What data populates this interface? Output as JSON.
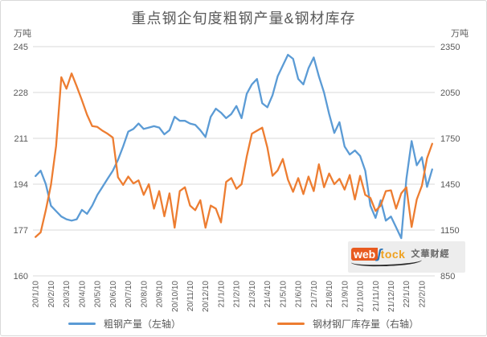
{
  "title": "重点钢企旬度粗钢产量&钢材库存",
  "colors": {
    "title": "#595959",
    "tick_label": "#595959",
    "grid": "#d9d9d9",
    "series_output": "#5b9bd5",
    "series_inventory": "#ed7d31"
  },
  "watermark": {
    "web": "web",
    "tock": "tock",
    "cn": "文華财經"
  },
  "legend": [
    {
      "label": "粗钢产量（左轴）",
      "color": "#5b9bd5"
    },
    {
      "label": "钢材钢厂库存量（右轴）",
      "color": "#ed7d31"
    }
  ],
  "chart_data": {
    "type": "line",
    "title": "重点钢企旬度粗钢产量&钢材库存",
    "grid": "horizontal",
    "legend_position": "bottom",
    "left_axis": {
      "label": "万吨",
      "min": 160,
      "max": 245,
      "ticks": [
        245,
        228,
        211,
        194,
        177,
        160
      ]
    },
    "right_axis": {
      "label": "万吨",
      "min": 850,
      "max": 2350,
      "ticks": [
        2350,
        2050,
        1750,
        1450,
        1150,
        850
      ]
    },
    "x_tick_labels": [
      "20/1/10",
      "20/2/10",
      "20/3/10",
      "20/4/10",
      "20/5/10",
      "20/6/10",
      "20/7/10",
      "20/8/10",
      "20/9/10",
      "20/10/10",
      "20/11/10",
      "20/12/10",
      "21/1/10",
      "21/2/10",
      "21/3/10",
      "21/4/10",
      "21/5/10",
      "21/6/10",
      "21/7/10",
      "21/8/10",
      "21/9/10",
      "21/10/10",
      "21/11/10",
      "21/12/10",
      "22/1/10",
      "22/2/10"
    ],
    "x": [
      "20/1/10",
      "20/1/20",
      "20/1/31",
      "20/2/10",
      "20/2/20",
      "20/2/29",
      "20/3/10",
      "20/3/20",
      "20/3/31",
      "20/4/10",
      "20/4/20",
      "20/4/30",
      "20/5/10",
      "20/5/20",
      "20/5/31",
      "20/6/10",
      "20/6/20",
      "20/6/30",
      "20/7/10",
      "20/7/20",
      "20/7/31",
      "20/8/10",
      "20/8/20",
      "20/8/31",
      "20/9/10",
      "20/9/20",
      "20/9/30",
      "20/10/10",
      "20/10/20",
      "20/10/31",
      "20/11/10",
      "20/11/20",
      "20/11/30",
      "20/12/10",
      "20/12/20",
      "20/12/31",
      "21/1/10",
      "21/1/20",
      "21/1/31",
      "21/2/10",
      "21/2/20",
      "21/2/28",
      "21/3/10",
      "21/3/20",
      "21/3/31",
      "21/4/10",
      "21/4/20",
      "21/4/30",
      "21/5/10",
      "21/5/20",
      "21/5/31",
      "21/6/10",
      "21/6/20",
      "21/6/30",
      "21/7/10",
      "21/7/20",
      "21/7/31",
      "21/8/10",
      "21/8/20",
      "21/8/31",
      "21/9/10",
      "21/9/20",
      "21/9/30",
      "21/10/10",
      "21/10/20",
      "21/10/31",
      "21/11/10",
      "21/11/20",
      "21/11/30",
      "21/12/10",
      "21/12/20",
      "21/12/31",
      "22/1/10",
      "22/1/20",
      "22/1/31",
      "22/2/10",
      "22/2/20",
      "22/2/28"
    ],
    "series": [
      {
        "name": "粗钢产量（左轴）",
        "axis": "left",
        "color": "#5b9bd5",
        "values": [
          197,
          199,
          194,
          186,
          184,
          182,
          181,
          180.5,
          181,
          184.5,
          183,
          186,
          190,
          193,
          196,
          199,
          203,
          208,
          213.5,
          214.5,
          216.5,
          214.5,
          215,
          215.5,
          215,
          212.5,
          214,
          219,
          217.5,
          217.5,
          216.5,
          216,
          214,
          211.5,
          219,
          222,
          220.5,
          218.5,
          220,
          223,
          218.5,
          227.5,
          231,
          233,
          224,
          222.5,
          227,
          234,
          238,
          242,
          240.5,
          233,
          231,
          237,
          241,
          234,
          228,
          220,
          213,
          217,
          208,
          205,
          206.5,
          204.5,
          199,
          186,
          181.5,
          188,
          180.5,
          182,
          178,
          174,
          196,
          210,
          201,
          204,
          193,
          199.5
        ]
      },
      {
        "name": "钢材钢厂库存量（右轴）",
        "axis": "right",
        "color": "#ed7d31",
        "values": [
          1105,
          1135,
          1280,
          1445,
          1700,
          2150,
          2075,
          2175,
          2090,
          2000,
          1905,
          1830,
          1825,
          1800,
          1780,
          1755,
          1495,
          1445,
          1500,
          1455,
          1475,
          1380,
          1450,
          1290,
          1405,
          1240,
          1390,
          1165,
          1405,
          1430,
          1310,
          1280,
          1345,
          1165,
          1310,
          1290,
          1200,
          1465,
          1490,
          1420,
          1450,
          1630,
          1780,
          1800,
          1820,
          1690,
          1505,
          1540,
          1615,
          1480,
          1400,
          1490,
          1385,
          1500,
          1405,
          1580,
          1430,
          1520,
          1450,
          1485,
          1415,
          1510,
          1350,
          1505,
          1380,
          1360,
          1275,
          1310,
          1405,
          1410,
          1290,
          1390,
          1430,
          1170,
          1350,
          1440,
          1620,
          1715
        ]
      }
    ]
  }
}
